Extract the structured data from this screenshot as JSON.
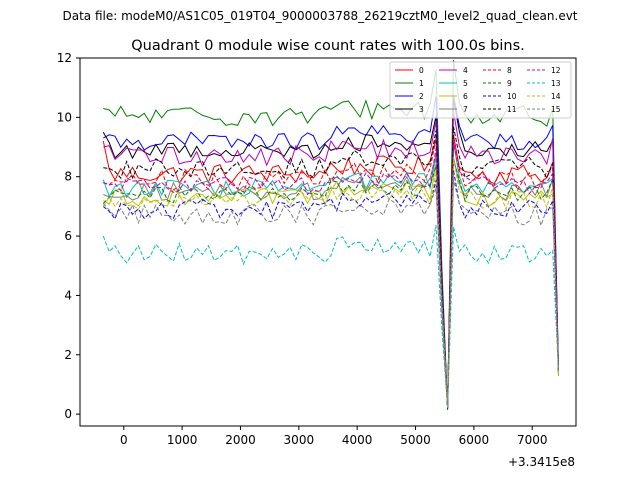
{
  "suptitle": "Data file: modeM0/AS1C05_019T04_9000003788_26219cztM0_level2_quad_clean.evt",
  "chart_data": {
    "type": "line",
    "title": "Quadrant 0 module wise count rates with 100.0s bins.",
    "xlabel": "",
    "ylabel": "",
    "x_offset_label": "+3.3415e8",
    "xlim": [
      -750,
      7750
    ],
    "ylim": [
      -0.4,
      12
    ],
    "xticks": [
      0,
      1000,
      2000,
      3000,
      4000,
      5000,
      6000,
      7000
    ],
    "yticks": [
      0,
      2,
      4,
      6,
      8,
      10,
      12
    ],
    "x_start": -350,
    "x_step": 100,
    "num_bins": 79,
    "legend_position": "upper right",
    "series": [
      {
        "name": "0",
        "color": "#ff0000",
        "dashed": false,
        "base": 8.1,
        "amp": 0.35,
        "amp_early": 9.2
      },
      {
        "name": "1",
        "color": "#008000",
        "dashed": false,
        "base": 10.05,
        "amp": 0.35,
        "amp_early": 10.3
      },
      {
        "name": "2",
        "color": "#0000ff",
        "dashed": false,
        "base": 9.2,
        "amp": 0.3,
        "amp_early": 9.3
      },
      {
        "name": "3",
        "color": "#000000",
        "dashed": false,
        "base": 8.9,
        "amp": 0.3,
        "amp_early": 9.5
      },
      {
        "name": "4",
        "color": "#bf00bf",
        "dashed": false,
        "base": 8.7,
        "amp": 0.35,
        "amp_early": 9.0
      },
      {
        "name": "5",
        "color": "#00bfbf",
        "dashed": false,
        "base": 7.6,
        "amp": 0.3,
        "amp_early": 7.9
      },
      {
        "name": "6",
        "color": "#bfbf00",
        "dashed": false,
        "base": 7.3,
        "amp": 0.3,
        "amp_early": 7.2
      },
      {
        "name": "7",
        "color": "#808080",
        "dashed": false,
        "base": 7.5,
        "amp": 0.3,
        "amp_early": 7.4
      },
      {
        "name": "8",
        "color": "#ff0000",
        "dashed": true,
        "base": 7.9,
        "amp": 0.35,
        "amp_early": 7.8
      },
      {
        "name": "9",
        "color": "#008000",
        "dashed": true,
        "base": 7.4,
        "amp": 0.3,
        "amp_early": 7.1
      },
      {
        "name": "10",
        "color": "#0000ff",
        "dashed": true,
        "base": 6.9,
        "amp": 0.35,
        "amp_early": 7.0
      },
      {
        "name": "11",
        "color": "#000000",
        "dashed": true,
        "base": 8.3,
        "amp": 0.35,
        "amp_early": 8.3
      },
      {
        "name": "12",
        "color": "#bf00bf",
        "dashed": true,
        "base": 7.7,
        "amp": 0.3,
        "amp_early": 7.8
      },
      {
        "name": "13",
        "color": "#00bfbf",
        "dashed": true,
        "base": 5.4,
        "amp": 0.35,
        "amp_early": 6.0
      },
      {
        "name": "14",
        "color": "#bfbf00",
        "dashed": true,
        "base": 7.2,
        "amp": 0.3,
        "amp_early": 7.0
      },
      {
        "name": "15",
        "color": "#808080",
        "dashed": true,
        "base": 6.7,
        "amp": 0.35,
        "amp_early": 7.1
      }
    ],
    "feature_points": {
      "peak1_x": 5350,
      "dip1_x": 5550,
      "peak2_x": 5650,
      "end_peak_x": 7350,
      "end_dip_x": 7450,
      "dip_values": [
        0.3,
        0.2,
        0.15,
        0.25,
        0.2,
        0.3,
        0.25,
        0.2,
        0.3,
        0.25,
        0.2,
        0.25,
        0.3,
        0.2,
        0.25,
        0.3
      ],
      "end_values": [
        1.5,
        1.3,
        1.6,
        1.4,
        1.4,
        1.5,
        1.3,
        1.4,
        1.5,
        1.3,
        1.6,
        1.4,
        1.5,
        1.4,
        1.3,
        1.5
      ]
    }
  }
}
